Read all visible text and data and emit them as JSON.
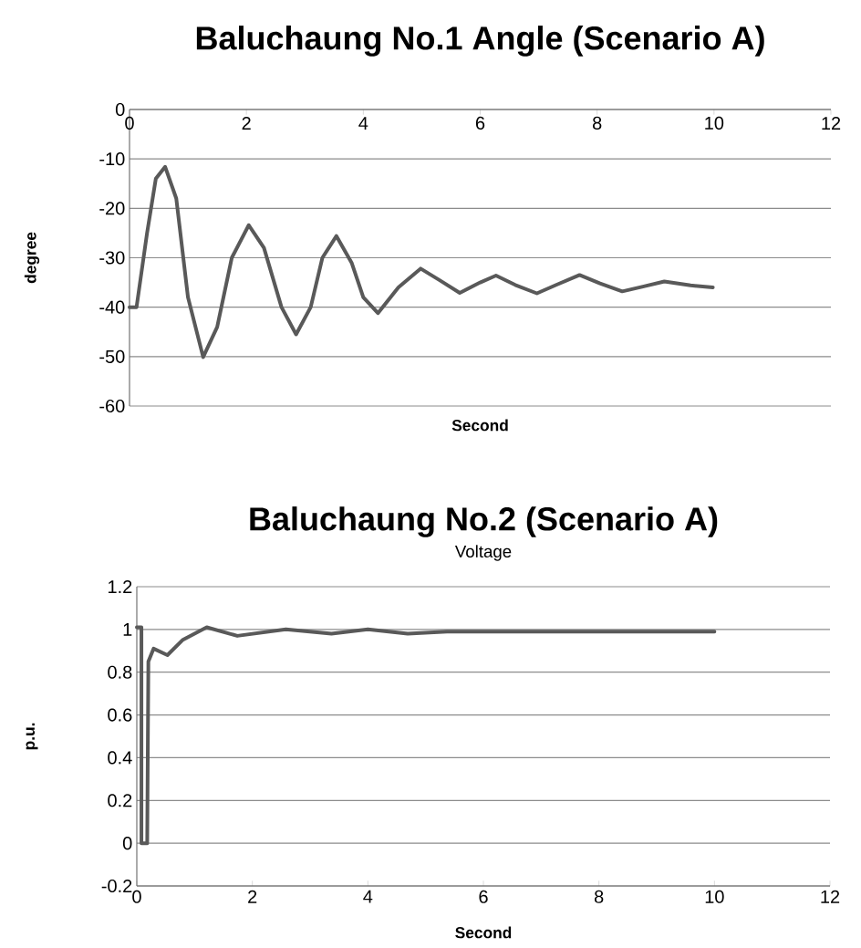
{
  "chart_data": [
    {
      "type": "line",
      "title": "Baluchaung No.1 Angle (Scenario A)",
      "xlabel": "Second",
      "ylabel": "degree",
      "series": [
        {
          "color": "#595959",
          "x": [
            0,
            0.12,
            0.3,
            0.45,
            0.61,
            0.8,
            1.0,
            1.26,
            1.5,
            1.75,
            2.04,
            2.3,
            2.6,
            2.85,
            3.1,
            3.3,
            3.54,
            3.8,
            4.0,
            4.25,
            4.6,
            4.98,
            5.3,
            5.65,
            6.0,
            6.27,
            6.6,
            6.97,
            7.3,
            7.7,
            8.05,
            8.43,
            8.8,
            9.15,
            9.6,
            9.98
          ],
          "values": [
            -40,
            -40,
            -25,
            -14,
            -11.6,
            -18,
            -38,
            -50.1,
            -44,
            -30,
            -23.4,
            -28,
            -40,
            -45.5,
            -40,
            -30,
            -25.6,
            -31,
            -38,
            -41.2,
            -36,
            -32.2,
            -34.5,
            -37.1,
            -35,
            -33.6,
            -35.5,
            -37.2,
            -35.5,
            -33.5,
            -35.2,
            -36.8,
            -35.8,
            -34.8,
            -35.6,
            -36.0
          ]
        }
      ],
      "xlim": [
        0,
        12
      ],
      "ylim": [
        -60,
        0
      ],
      "xticks": [
        0,
        2,
        4,
        6,
        8,
        10,
        12
      ],
      "yticks": [
        -60,
        -50,
        -40,
        -30,
        -20,
        -10,
        0
      ],
      "grid": "y"
    },
    {
      "type": "line",
      "title": "Baluchaung No.2 (Scenario A)",
      "subtitle": "Voltage",
      "xlabel": "Second",
      "ylabel": "p.u.",
      "series": [
        {
          "color": "#595959",
          "x": [
            0,
            0.08,
            0.08,
            0.18,
            0.2,
            0.29,
            0.53,
            0.79,
            1.21,
            1.74,
            2.58,
            3.37,
            4.0,
            4.69,
            5.37,
            6.0,
            7.4,
            8.3,
            10
          ],
          "values": [
            1.01,
            1.01,
            0,
            0,
            0.85,
            0.91,
            0.88,
            0.95,
            1.01,
            0.97,
            1.0,
            0.98,
            1.0,
            0.98,
            0.99,
            0.99,
            0.99,
            0.99,
            0.99
          ]
        }
      ],
      "xlim": [
        0,
        12
      ],
      "ylim": [
        -0.2,
        1.2
      ],
      "xticks": [
        0,
        2,
        4,
        6,
        8,
        10,
        12
      ],
      "yticks": [
        -0.2,
        0,
        0.2,
        0.4,
        0.6,
        0.8,
        1,
        1.2
      ],
      "grid": "y"
    }
  ]
}
